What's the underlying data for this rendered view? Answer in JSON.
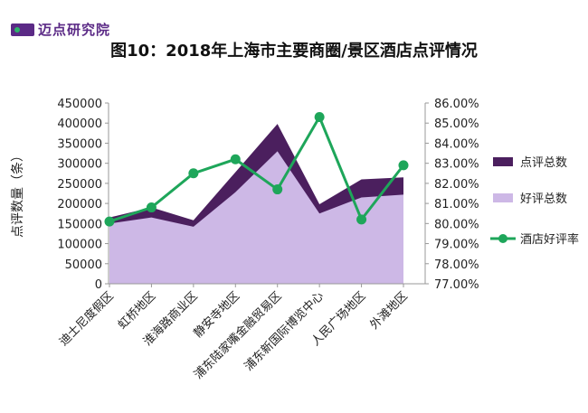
{
  "logo": {
    "text": "迈点研究院"
  },
  "chart_data": {
    "type": "area",
    "title": "图10：2018年上海市主要商圈/景区酒店点评情况",
    "ylabel": "点评数量（条）",
    "y2label": "",
    "categories": [
      "迪士尼度假区",
      "虹桥地区",
      "淮海路商业区",
      "静安寺地区",
      "浦东陆家嘴金融贸易区",
      "浦东新国际博览中心",
      "人民广场地区",
      "外滩地区"
    ],
    "ylim": [
      0,
      450000
    ],
    "y2lim": [
      77.0,
      86.0
    ],
    "y_ticks": [
      "0",
      "50000",
      "100000",
      "150000",
      "200000",
      "250000",
      "300000",
      "350000",
      "400000",
      "450000"
    ],
    "y2_ticks": [
      "77.00%",
      "78.00%",
      "79.00%",
      "80.00%",
      "81.00%",
      "82.00%",
      "83.00%",
      "84.00%",
      "85.00%",
      "86.00%"
    ],
    "series": [
      {
        "name": "点评总数",
        "type": "area",
        "axis": "left",
        "color": "#4b1f5e",
        "values": [
          165000,
          190000,
          158000,
          278000,
          398000,
          198000,
          260000,
          265000
        ]
      },
      {
        "name": "好评总数",
        "type": "area",
        "axis": "left",
        "color": "#cdb8e6",
        "values": [
          150000,
          165000,
          142000,
          228000,
          330000,
          175000,
          215000,
          222000
        ]
      },
      {
        "name": "酒店好评率",
        "type": "line",
        "axis": "right",
        "color": "#1ea65a",
        "values": [
          80.1,
          80.8,
          82.5,
          83.2,
          81.7,
          85.3,
          80.2,
          82.9
        ]
      }
    ],
    "legend": {
      "position": "right",
      "items": [
        "点评总数",
        "好评总数",
        "酒店好评率"
      ]
    },
    "grid": false
  }
}
